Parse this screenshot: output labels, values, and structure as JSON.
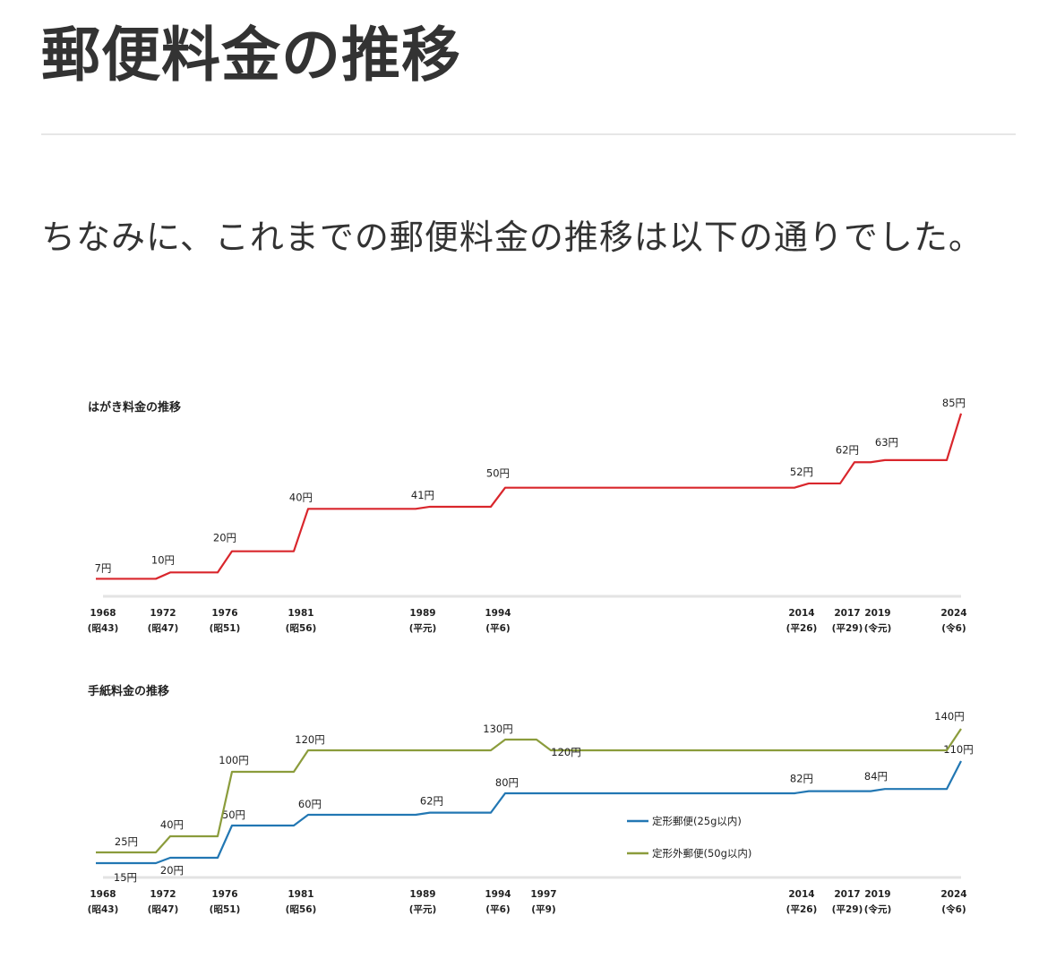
{
  "article": {
    "heading": "郵便料金の推移",
    "paragraph": "ちなみに、これまでの郵便料金の推移は以下の通りでした。"
  },
  "chart_data": [
    {
      "type": "line",
      "title": "はがき料金の推移",
      "x_ticks": [
        {
          "year": 1968,
          "era": "(昭43)"
        },
        {
          "year": 1972,
          "era": "(昭47)"
        },
        {
          "year": 1976,
          "era": "(昭51)"
        },
        {
          "year": 1981,
          "era": "(昭56)"
        },
        {
          "year": 1989,
          "era": "(平元)"
        },
        {
          "year": 1994,
          "era": "(平6)"
        },
        {
          "year": 2014,
          "era": "(平26)"
        },
        {
          "year": 2017,
          "era": "(平29)"
        },
        {
          "year": 2019,
          "era": "(令元)"
        },
        {
          "year": 2024,
          "era": "(令6)"
        }
      ],
      "xlim": [
        1968,
        2024
      ],
      "ylim": [
        0,
        90
      ],
      "series": [
        {
          "color": "#d9262c",
          "values": [
            {
              "year": 1968,
              "price": 7
            },
            {
              "year": 1972,
              "price": 10
            },
            {
              "year": 1976,
              "price": 20
            },
            {
              "year": 1981,
              "price": 40
            },
            {
              "year": 1989,
              "price": 41
            },
            {
              "year": 1994,
              "price": 50
            },
            {
              "year": 2014,
              "price": 52
            },
            {
              "year": 2017,
              "price": 62
            },
            {
              "year": 2019,
              "price": 63
            },
            {
              "year": 2024,
              "price": 85
            }
          ]
        }
      ],
      "labels": [
        "7円",
        "10円",
        "20円",
        "40円",
        "41円",
        "50円",
        "52円",
        "62円",
        "63円",
        "85円"
      ]
    },
    {
      "type": "line",
      "title": "手紙料金の推移",
      "x_ticks": [
        {
          "year": 1968,
          "era": "(昭43)"
        },
        {
          "year": 1972,
          "era": "(昭47)"
        },
        {
          "year": 1976,
          "era": "(昭51)"
        },
        {
          "year": 1981,
          "era": "(昭56)"
        },
        {
          "year": 1989,
          "era": "(平元)"
        },
        {
          "year": 1994,
          "era": "(平6)"
        },
        {
          "year": 1997,
          "era": "(平9)"
        },
        {
          "year": 2014,
          "era": "(平26)"
        },
        {
          "year": 2017,
          "era": "(平29)"
        },
        {
          "year": 2019,
          "era": "(令元)"
        },
        {
          "year": 2024,
          "era": "(令6)"
        }
      ],
      "xlim": [
        1968,
        2024
      ],
      "ylim": [
        0,
        150
      ],
      "legend_position": "center-right",
      "series": [
        {
          "name": "定形郵便(25g以内)",
          "color": "#2277b3",
          "values": [
            {
              "year": 1968,
              "price": 15
            },
            {
              "year": 1972,
              "price": 20
            },
            {
              "year": 1976,
              "price": 50
            },
            {
              "year": 1981,
              "price": 60
            },
            {
              "year": 1989,
              "price": 62
            },
            {
              "year": 1994,
              "price": 80
            },
            {
              "year": 2014,
              "price": 82
            },
            {
              "year": 2019,
              "price": 84
            },
            {
              "year": 2024,
              "price": 110
            }
          ],
          "labels": [
            "15円",
            "20円",
            "50円",
            "60円",
            "62円",
            "80円",
            "82円",
            "84円",
            "110円"
          ]
        },
        {
          "name": "定形外郵便(50g以内)",
          "color": "#8b9c3c",
          "values": [
            {
              "year": 1968,
              "price": 25
            },
            {
              "year": 1972,
              "price": 40
            },
            {
              "year": 1976,
              "price": 100
            },
            {
              "year": 1981,
              "price": 120
            },
            {
              "year": 1994,
              "price": 130
            },
            {
              "year": 1997,
              "price": 120
            },
            {
              "year": 2024,
              "price": 140
            }
          ],
          "labels": [
            "25円",
            "40円",
            "100円",
            "120円",
            "130円",
            "120円",
            "140円"
          ]
        }
      ]
    }
  ]
}
